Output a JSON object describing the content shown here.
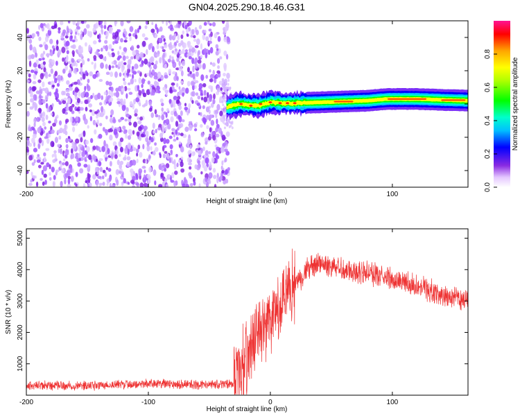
{
  "title": "GN04.2025.290.18.46.G31",
  "chart_data": [
    {
      "type": "heatmap",
      "name": "spectrogram",
      "xlabel": "Height of straight line (km)",
      "ylabel": "Frequency (Hz)",
      "xlim": [
        -200,
        162
      ],
      "ylim": [
        -50,
        50
      ],
      "xticks": [
        -200,
        -100,
        0,
        100
      ],
      "yticks": [
        -40,
        -20,
        0,
        20,
        40
      ],
      "noise_region_x": [
        -200,
        -40
      ],
      "signal_line": [
        {
          "x": -36,
          "y": -2
        },
        {
          "x": -25,
          "y": 0
        },
        {
          "x": -10,
          "y": -1
        },
        {
          "x": 0,
          "y": 1
        },
        {
          "x": 10,
          "y": 0.5
        },
        {
          "x": 20,
          "y": 0.5
        },
        {
          "x": 40,
          "y": 1
        },
        {
          "x": 60,
          "y": 1.5
        },
        {
          "x": 80,
          "y": 2
        },
        {
          "x": 95,
          "y": 3
        },
        {
          "x": 120,
          "y": 3
        },
        {
          "x": 140,
          "y": 2.5
        },
        {
          "x": 162,
          "y": 2
        }
      ],
      "colorbar": {
        "label": "Normalized spectral amplitude",
        "range": [
          0,
          1
        ],
        "ticks": [
          0.0,
          0.2,
          0.4,
          0.6,
          0.8
        ]
      }
    },
    {
      "type": "line",
      "name": "snr",
      "xlabel": "Height of straight line (km)",
      "ylabel": "SNR (10 * v/v)",
      "xlim": [
        -200,
        162
      ],
      "ylim": [
        0,
        5300
      ],
      "xticks": [
        -200,
        -100,
        0,
        100
      ],
      "yticks": [
        1000,
        2000,
        3000,
        4000,
        5000
      ],
      "color": "#ee3333",
      "envelope": [
        {
          "x": -200,
          "y": 300
        },
        {
          "x": -150,
          "y": 300
        },
        {
          "x": -100,
          "y": 380
        },
        {
          "x": -50,
          "y": 320
        },
        {
          "x": -30,
          "y": 380
        },
        {
          "x": -20,
          "y": 1200
        },
        {
          "x": -10,
          "y": 2000
        },
        {
          "x": 0,
          "y": 2400
        },
        {
          "x": 10,
          "y": 2800
        },
        {
          "x": 20,
          "y": 3500
        },
        {
          "x": 30,
          "y": 4000
        },
        {
          "x": 40,
          "y": 4200
        },
        {
          "x": 50,
          "y": 4100
        },
        {
          "x": 60,
          "y": 4000
        },
        {
          "x": 80,
          "y": 3900
        },
        {
          "x": 100,
          "y": 3700
        },
        {
          "x": 120,
          "y": 3500
        },
        {
          "x": 140,
          "y": 3200
        },
        {
          "x": 162,
          "y": 3000
        }
      ]
    }
  ]
}
